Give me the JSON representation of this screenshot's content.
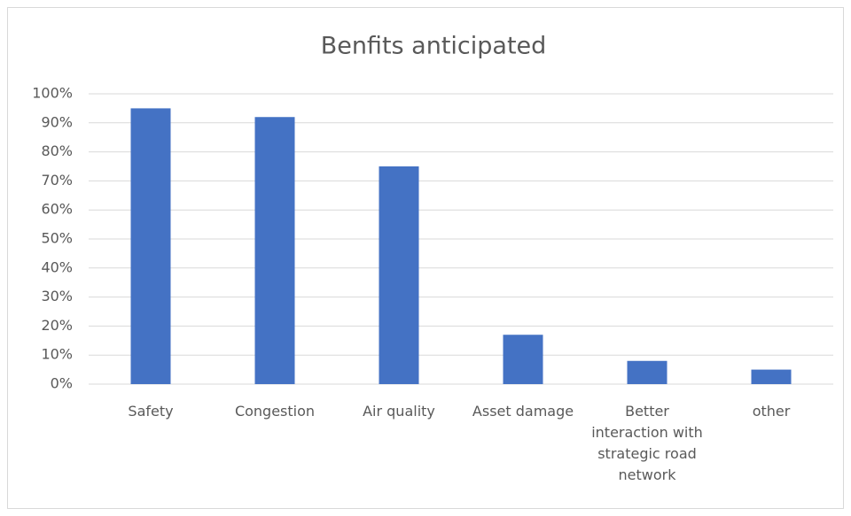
{
  "chart_data": {
    "type": "bar",
    "title": "Benfits anticipated",
    "categories": [
      "Safety",
      "Congestion",
      "Air quality",
      "Asset damage",
      "Better interaction with strategic road network",
      "other"
    ],
    "values": [
      95,
      92,
      75,
      17,
      8,
      5
    ],
    "color": "#4472c4",
    "ylim": [
      0,
      100
    ],
    "yticks": [
      {
        "value": 0,
        "label": "0%"
      },
      {
        "value": 10,
        "label": "10%"
      },
      {
        "value": 20,
        "label": "20%"
      },
      {
        "value": 30,
        "label": "30%"
      },
      {
        "value": 40,
        "label": "40%"
      },
      {
        "value": 50,
        "label": "50%"
      },
      {
        "value": 60,
        "label": "60%"
      },
      {
        "value": 70,
        "label": "70%"
      },
      {
        "value": 80,
        "label": "80%"
      },
      {
        "value": 90,
        "label": "90%"
      },
      {
        "value": 100,
        "label": "100%"
      }
    ],
    "grid": true
  }
}
